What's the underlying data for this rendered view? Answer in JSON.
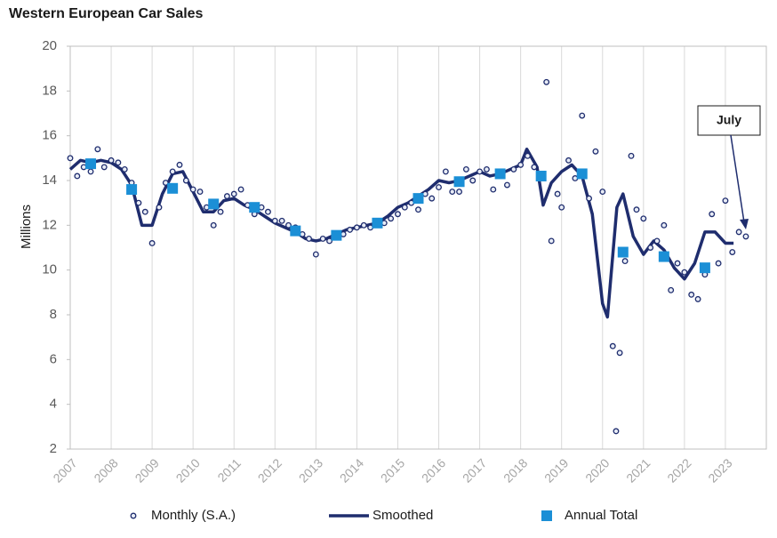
{
  "chart_data": {
    "type": "combo",
    "title": "Western European Car Sales",
    "y_label": "Millions",
    "annotation": "July",
    "xlim": [
      2007,
      2024
    ],
    "xticks": [
      2007,
      2008,
      2009,
      2010,
      2011,
      2012,
      2013,
      2014,
      2015,
      2016,
      2017,
      2018,
      2019,
      2020,
      2021,
      2022,
      2023
    ],
    "ylim": [
      2,
      20
    ],
    "yticks": [
      2,
      4,
      6,
      8,
      10,
      12,
      14,
      16,
      18,
      20
    ],
    "grid": "x",
    "legend": "bottom",
    "series": [
      {
        "name": "Monthly (S.A.)",
        "type": "scatter",
        "marker": "circle",
        "color": "#1f2d6e",
        "x": [
          2007.0,
          2007.17,
          2007.33,
          2007.5,
          2007.67,
          2007.83,
          2008.0,
          2008.17,
          2008.33,
          2008.5,
          2008.67,
          2008.83,
          2009.0,
          2009.17,
          2009.33,
          2009.5,
          2009.67,
          2009.83,
          2010.0,
          2010.17,
          2010.33,
          2010.5,
          2010.67,
          2010.83,
          2011.0,
          2011.17,
          2011.33,
          2011.5,
          2011.67,
          2011.83,
          2012.0,
          2012.17,
          2012.33,
          2012.5,
          2012.67,
          2012.83,
          2013.0,
          2013.17,
          2013.33,
          2013.5,
          2013.67,
          2013.83,
          2014.0,
          2014.17,
          2014.33,
          2014.5,
          2014.67,
          2014.83,
          2015.0,
          2015.17,
          2015.33,
          2015.5,
          2015.67,
          2015.83,
          2016.0,
          2016.17,
          2016.33,
          2016.5,
          2016.67,
          2016.83,
          2017.0,
          2017.17,
          2017.33,
          2017.5,
          2017.67,
          2017.83,
          2018.0,
          2018.17,
          2018.33,
          2018.63,
          2018.75,
          2018.9,
          2019.0,
          2019.17,
          2019.33,
          2019.5,
          2019.67,
          2019.83,
          2020.0,
          2020.25,
          2020.33,
          2020.42,
          2020.55,
          2020.7,
          2020.83,
          2021.0,
          2021.17,
          2021.33,
          2021.5,
          2021.67,
          2021.83,
          2022.0,
          2022.17,
          2022.33,
          2022.5,
          2022.67,
          2022.83,
          2023.0,
          2023.17,
          2023.33,
          2023.5
        ],
        "values": [
          15.0,
          14.2,
          14.6,
          14.4,
          15.4,
          14.6,
          14.9,
          14.8,
          14.5,
          13.9,
          13.0,
          12.6,
          11.2,
          12.8,
          13.9,
          14.4,
          14.7,
          14.0,
          13.6,
          13.5,
          12.8,
          12.0,
          12.6,
          13.3,
          13.4,
          13.6,
          12.9,
          12.5,
          12.8,
          12.6,
          12.2,
          12.2,
          12.0,
          11.9,
          11.6,
          11.4,
          10.7,
          11.4,
          11.3,
          11.5,
          11.6,
          11.8,
          11.9,
          12.0,
          11.9,
          12.1,
          12.1,
          12.3,
          12.5,
          12.8,
          13.0,
          12.7,
          13.4,
          13.2,
          13.7,
          14.4,
          13.5,
          13.5,
          14.5,
          14.0,
          14.4,
          14.5,
          13.6,
          14.3,
          13.8,
          14.5,
          14.7,
          15.1,
          14.6,
          18.4,
          11.3,
          13.4,
          12.8,
          14.9,
          14.1,
          16.9,
          13.2,
          15.3,
          13.5,
          6.6,
          2.8,
          6.3,
          10.4,
          15.1,
          12.7,
          12.3,
          11.0,
          11.3,
          12.0,
          9.1,
          10.3,
          9.9,
          8.9,
          8.7,
          9.8,
          12.5,
          10.3,
          13.1,
          10.8,
          11.7,
          11.5
        ]
      },
      {
        "name": "Smoothed",
        "type": "line",
        "color": "#1f2d6e",
        "x": [
          2007.0,
          2007.25,
          2007.5,
          2007.75,
          2008.0,
          2008.25,
          2008.5,
          2008.75,
          2009.0,
          2009.25,
          2009.5,
          2009.75,
          2010.0,
          2010.25,
          2010.5,
          2010.75,
          2011.0,
          2011.25,
          2011.5,
          2011.75,
          2012.0,
          2012.25,
          2012.5,
          2012.75,
          2013.0,
          2013.25,
          2013.5,
          2013.75,
          2014.0,
          2014.25,
          2014.5,
          2014.75,
          2015.0,
          2015.25,
          2015.5,
          2015.75,
          2016.0,
          2016.25,
          2016.5,
          2016.75,
          2017.0,
          2017.25,
          2017.5,
          2017.75,
          2018.0,
          2018.15,
          2018.4,
          2018.55,
          2018.75,
          2019.0,
          2019.25,
          2019.5,
          2019.75,
          2020.0,
          2020.12,
          2020.35,
          2020.5,
          2020.75,
          2021.0,
          2021.25,
          2021.5,
          2021.75,
          2022.0,
          2022.25,
          2022.5,
          2022.75,
          2023.0,
          2023.2
        ],
        "values": [
          14.5,
          14.9,
          14.8,
          14.9,
          14.8,
          14.5,
          13.8,
          12.0,
          12.0,
          13.4,
          14.3,
          14.4,
          13.5,
          12.6,
          12.6,
          13.1,
          13.2,
          12.9,
          12.7,
          12.4,
          12.1,
          11.9,
          11.7,
          11.4,
          11.3,
          11.4,
          11.6,
          11.8,
          11.9,
          12.0,
          12.1,
          12.4,
          12.8,
          13.0,
          13.3,
          13.6,
          14.0,
          13.9,
          14.0,
          14.2,
          14.4,
          14.2,
          14.3,
          14.5,
          14.7,
          15.4,
          14.6,
          12.9,
          13.9,
          14.4,
          14.7,
          14.2,
          12.5,
          8.5,
          7.9,
          12.8,
          13.4,
          11.5,
          10.7,
          11.3,
          10.9,
          10.1,
          9.6,
          10.3,
          11.7,
          11.7,
          11.2,
          11.2
        ]
      },
      {
        "name": "Annual Total",
        "type": "scatter",
        "marker": "square",
        "color": "#1b8fd6",
        "x": [
          2007.5,
          2008.5,
          2009.5,
          2010.5,
          2011.5,
          2012.5,
          2013.5,
          2014.5,
          2015.5,
          2016.5,
          2017.5,
          2018.5,
          2019.5,
          2020.5,
          2021.5,
          2022.5
        ],
        "values": [
          14.75,
          13.6,
          13.65,
          12.95,
          12.8,
          11.75,
          11.55,
          12.1,
          13.2,
          13.95,
          14.3,
          14.2,
          14.3,
          10.8,
          10.6,
          10.1
        ]
      }
    ]
  }
}
